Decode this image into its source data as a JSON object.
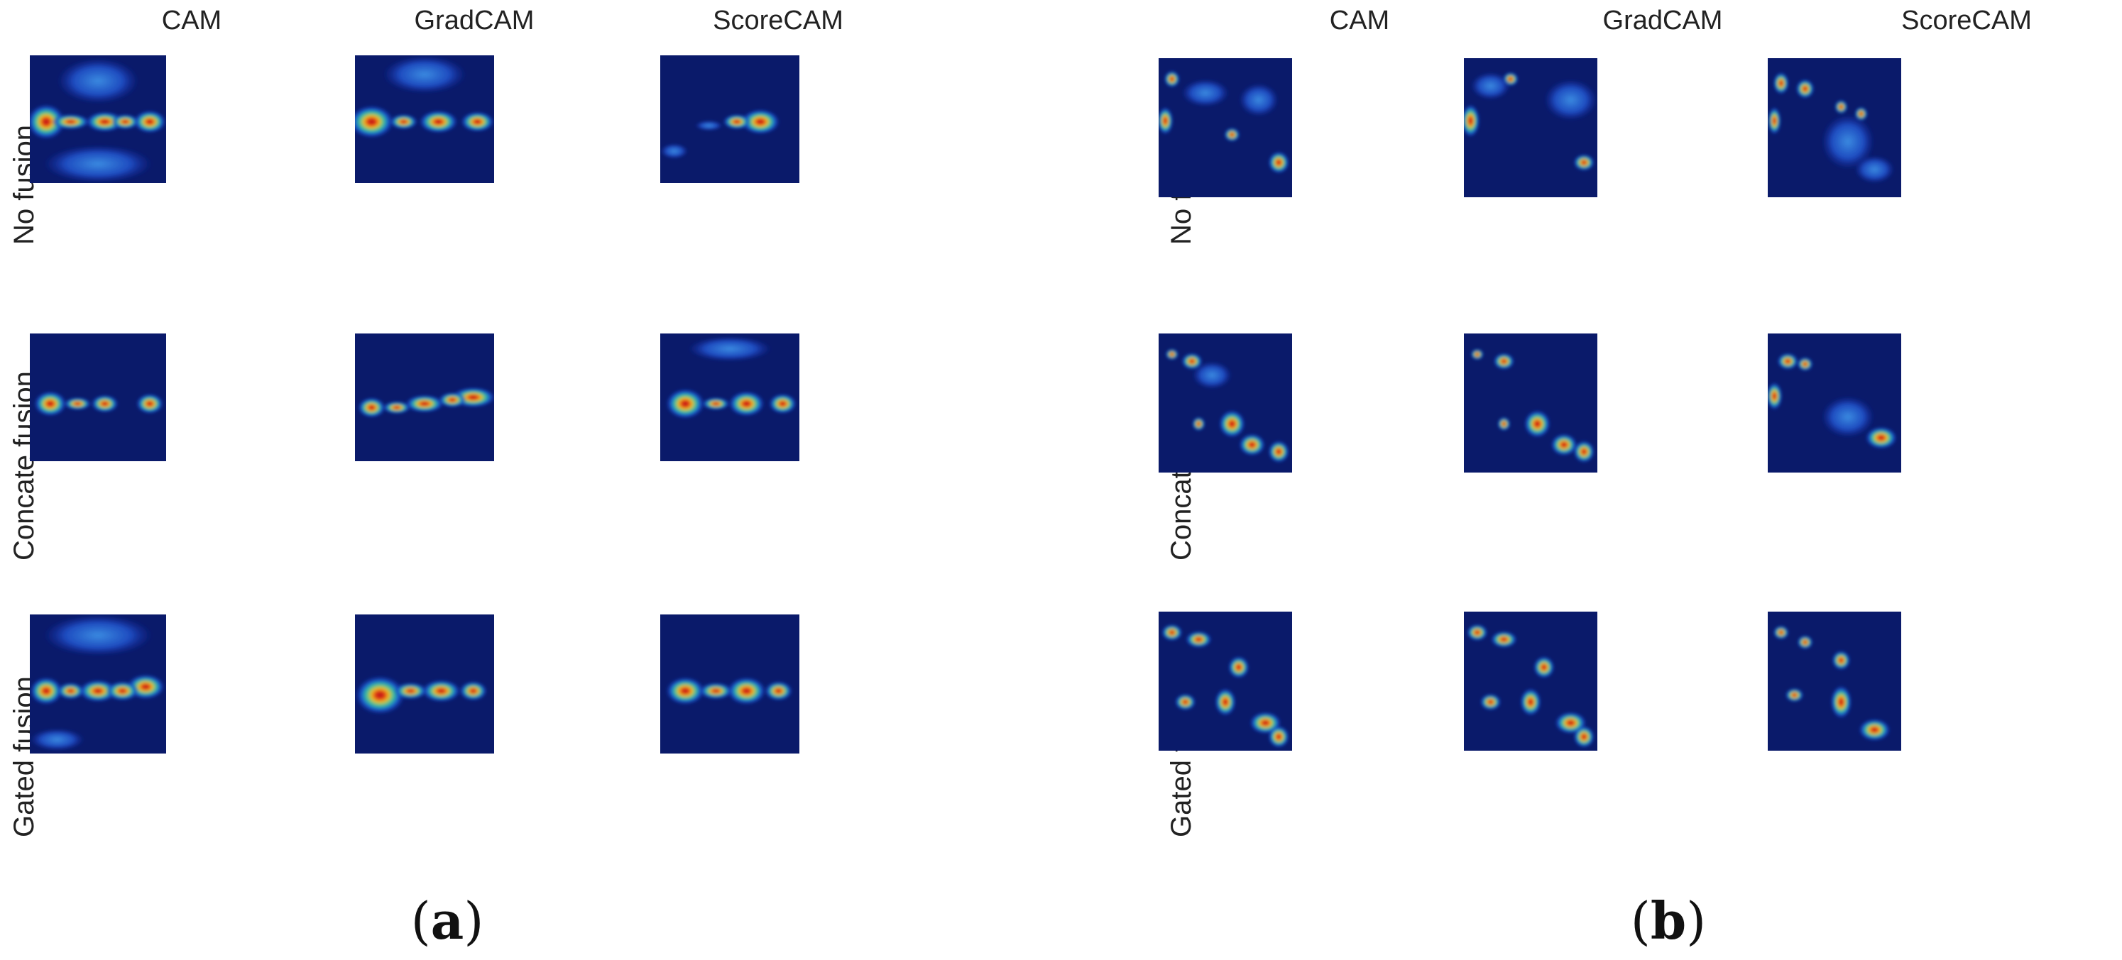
{
  "columns": [
    "CAM",
    "GradCAM",
    "ScoreCAM"
  ],
  "rows": [
    "No fusion",
    "Concate fusion",
    "Gated fusion"
  ],
  "panels": [
    {
      "id": "a",
      "caption_open": "(",
      "caption_letter": "a",
      "caption_close": ")"
    },
    {
      "id": "b",
      "caption_open": "(",
      "caption_letter": "b",
      "caption_close": ")"
    }
  ],
  "colors": {
    "background_map": "#06063a",
    "colormap": "jet"
  }
}
